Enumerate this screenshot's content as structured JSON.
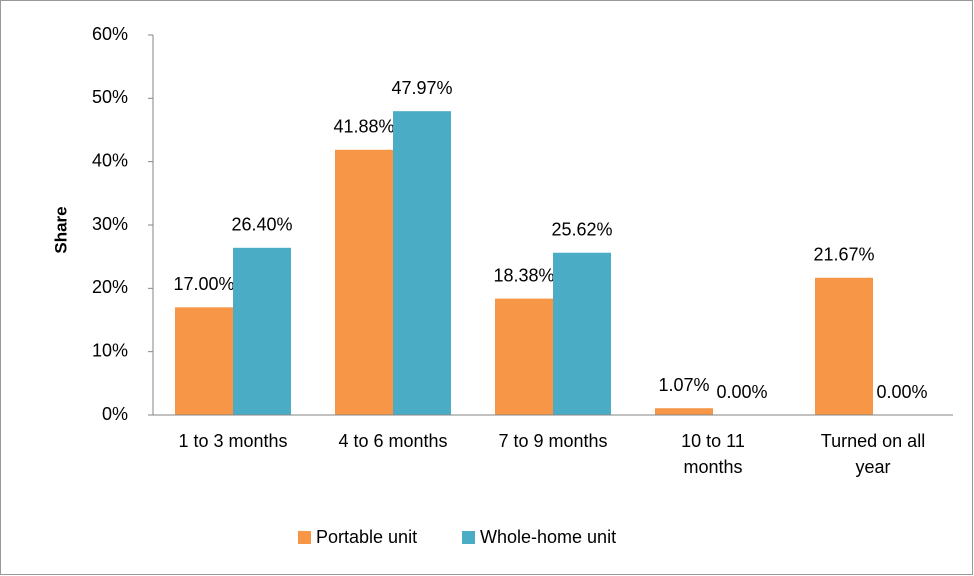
{
  "chart_data": {
    "type": "bar",
    "y_label": "Share",
    "categories": [
      "1 to 3 months",
      "4 to 6 months",
      "7 to 9 months",
      "10 to 11 months",
      "Turned on all year"
    ],
    "series": [
      {
        "name": "Portable unit",
        "color": "#f79646",
        "values": [
          17.0,
          41.88,
          18.38,
          1.07,
          21.67
        ],
        "value_labels": [
          "17.00%",
          "41.88%",
          "18.38%",
          "1.07%",
          "21.67%"
        ]
      },
      {
        "name": "Whole-home unit",
        "color": "#4bacc6",
        "values": [
          26.4,
          47.97,
          25.62,
          0.0,
          0.0
        ],
        "value_labels": [
          "26.40%",
          "47.97%",
          "25.62%",
          "0.00%",
          "0.00%"
        ]
      }
    ],
    "ylim": [
      0,
      60
    ],
    "yticks": [
      {
        "value": 0,
        "label": "0%"
      },
      {
        "value": 10,
        "label": "10%"
      },
      {
        "value": 20,
        "label": "20%"
      },
      {
        "value": 30,
        "label": "30%"
      },
      {
        "value": 40,
        "label": "40%"
      },
      {
        "value": 50,
        "label": "50%"
      },
      {
        "value": 60,
        "label": "60%"
      }
    ],
    "grid": false,
    "legend": "bottom"
  }
}
